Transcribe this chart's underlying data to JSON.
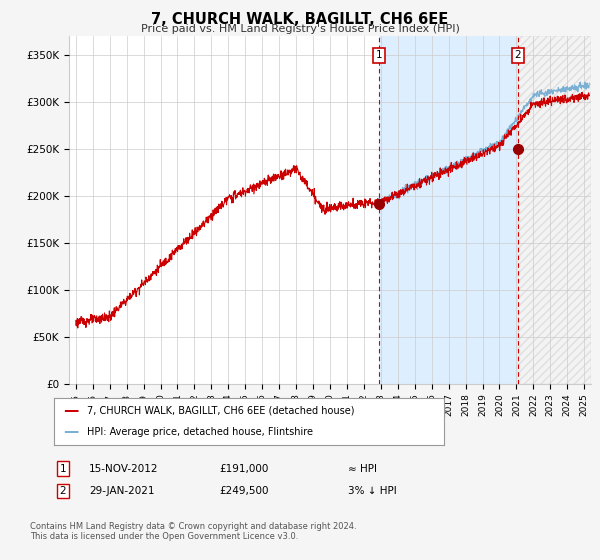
{
  "title": "7, CHURCH WALK, BAGILLT, CH6 6EE",
  "subtitle": "Price paid vs. HM Land Registry's House Price Index (HPI)",
  "ylabel_ticks": [
    "£0",
    "£50K",
    "£100K",
    "£150K",
    "£200K",
    "£250K",
    "£300K",
    "£350K"
  ],
  "ytick_values": [
    0,
    50000,
    100000,
    150000,
    200000,
    250000,
    300000,
    350000
  ],
  "ylim": [
    0,
    370000
  ],
  "xlim_start": 1994.6,
  "xlim_end": 2025.4,
  "sale1_date": 2012.87,
  "sale1_price": 191000,
  "sale2_date": 2021.08,
  "sale2_price": 249500,
  "sale1_text": "15-NOV-2012",
  "sale1_amount": "£191,000",
  "sale1_hpi": "≈ HPI",
  "sale2_text": "29-JAN-2021",
  "sale2_amount": "£249,500",
  "sale2_hpi": "3% ↓ HPI",
  "legend_line1": "7, CHURCH WALK, BAGILLT, CH6 6EE (detached house)",
  "legend_line2": "HPI: Average price, detached house, Flintshire",
  "footer": "Contains HM Land Registry data © Crown copyright and database right 2024.\nThis data is licensed under the Open Government Licence v3.0.",
  "hpi_color": "#7ab0d4",
  "price_color": "#cc0000",
  "background_color": "#f5f5f5",
  "plot_bg_color": "#ffffff",
  "shade_color": "#ddeeff",
  "grid_color": "#cccccc",
  "sale_vline_color": "#cc0000",
  "hatch_color": "#cccccc"
}
